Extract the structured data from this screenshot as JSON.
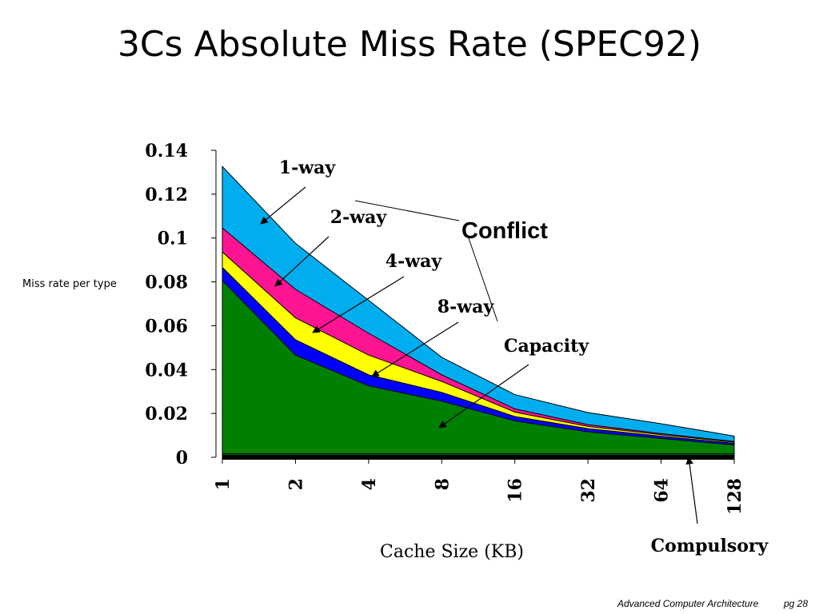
{
  "slide": {
    "title": "3Cs Absolute Miss Rate (SPEC92)",
    "footer_course": "Advanced Computer Architecture",
    "footer_page": "pg 28"
  },
  "chart_data": {
    "type": "area",
    "stacked": true,
    "xlabel": "Cache Size (KB)",
    "ylabel": "Miss rate per type",
    "categories": [
      "1",
      "2",
      "4",
      "8",
      "16",
      "32",
      "64",
      "128"
    ],
    "ylim": [
      0,
      0.14
    ],
    "yticks": [
      "0",
      "0.02",
      "0.04",
      "0.06",
      "0.08",
      "0.1",
      "0.12",
      "0.14"
    ],
    "series": [
      {
        "name": "Compulsory",
        "color": "#008000",
        "values": [
          0.0016,
          0.0016,
          0.0016,
          0.0016,
          0.0016,
          0.0016,
          0.0016,
          0.0016
        ]
      },
      {
        "name": "Capacity",
        "color": "#008000",
        "values": [
          0.079,
          0.045,
          0.031,
          0.024,
          0.015,
          0.01,
          0.007,
          0.004
        ]
      },
      {
        "name": "8-way",
        "color": "#0000ff",
        "values": [
          0.006,
          0.007,
          0.005,
          0.004,
          0.002,
          0.0015,
          0.001,
          0.0008
        ]
      },
      {
        "name": "4-way",
        "color": "#ffff00",
        "values": [
          0.007,
          0.01,
          0.009,
          0.005,
          0.002,
          0.001,
          0.0007,
          0.0005
        ]
      },
      {
        "name": "2-way",
        "color": "#ff1493",
        "values": [
          0.011,
          0.013,
          0.01,
          0.003,
          0.0015,
          0.0008,
          0.0005,
          0.0003
        ]
      },
      {
        "name": "1-way",
        "color": "#00aeef",
        "values": [
          0.028,
          0.021,
          0.015,
          0.008,
          0.0065,
          0.0055,
          0.0045,
          0.0025
        ]
      }
    ],
    "annotations": {
      "conflict_label": "Conflict",
      "capacity_label": "Capacity",
      "compulsory_label": "Compulsory"
    }
  }
}
